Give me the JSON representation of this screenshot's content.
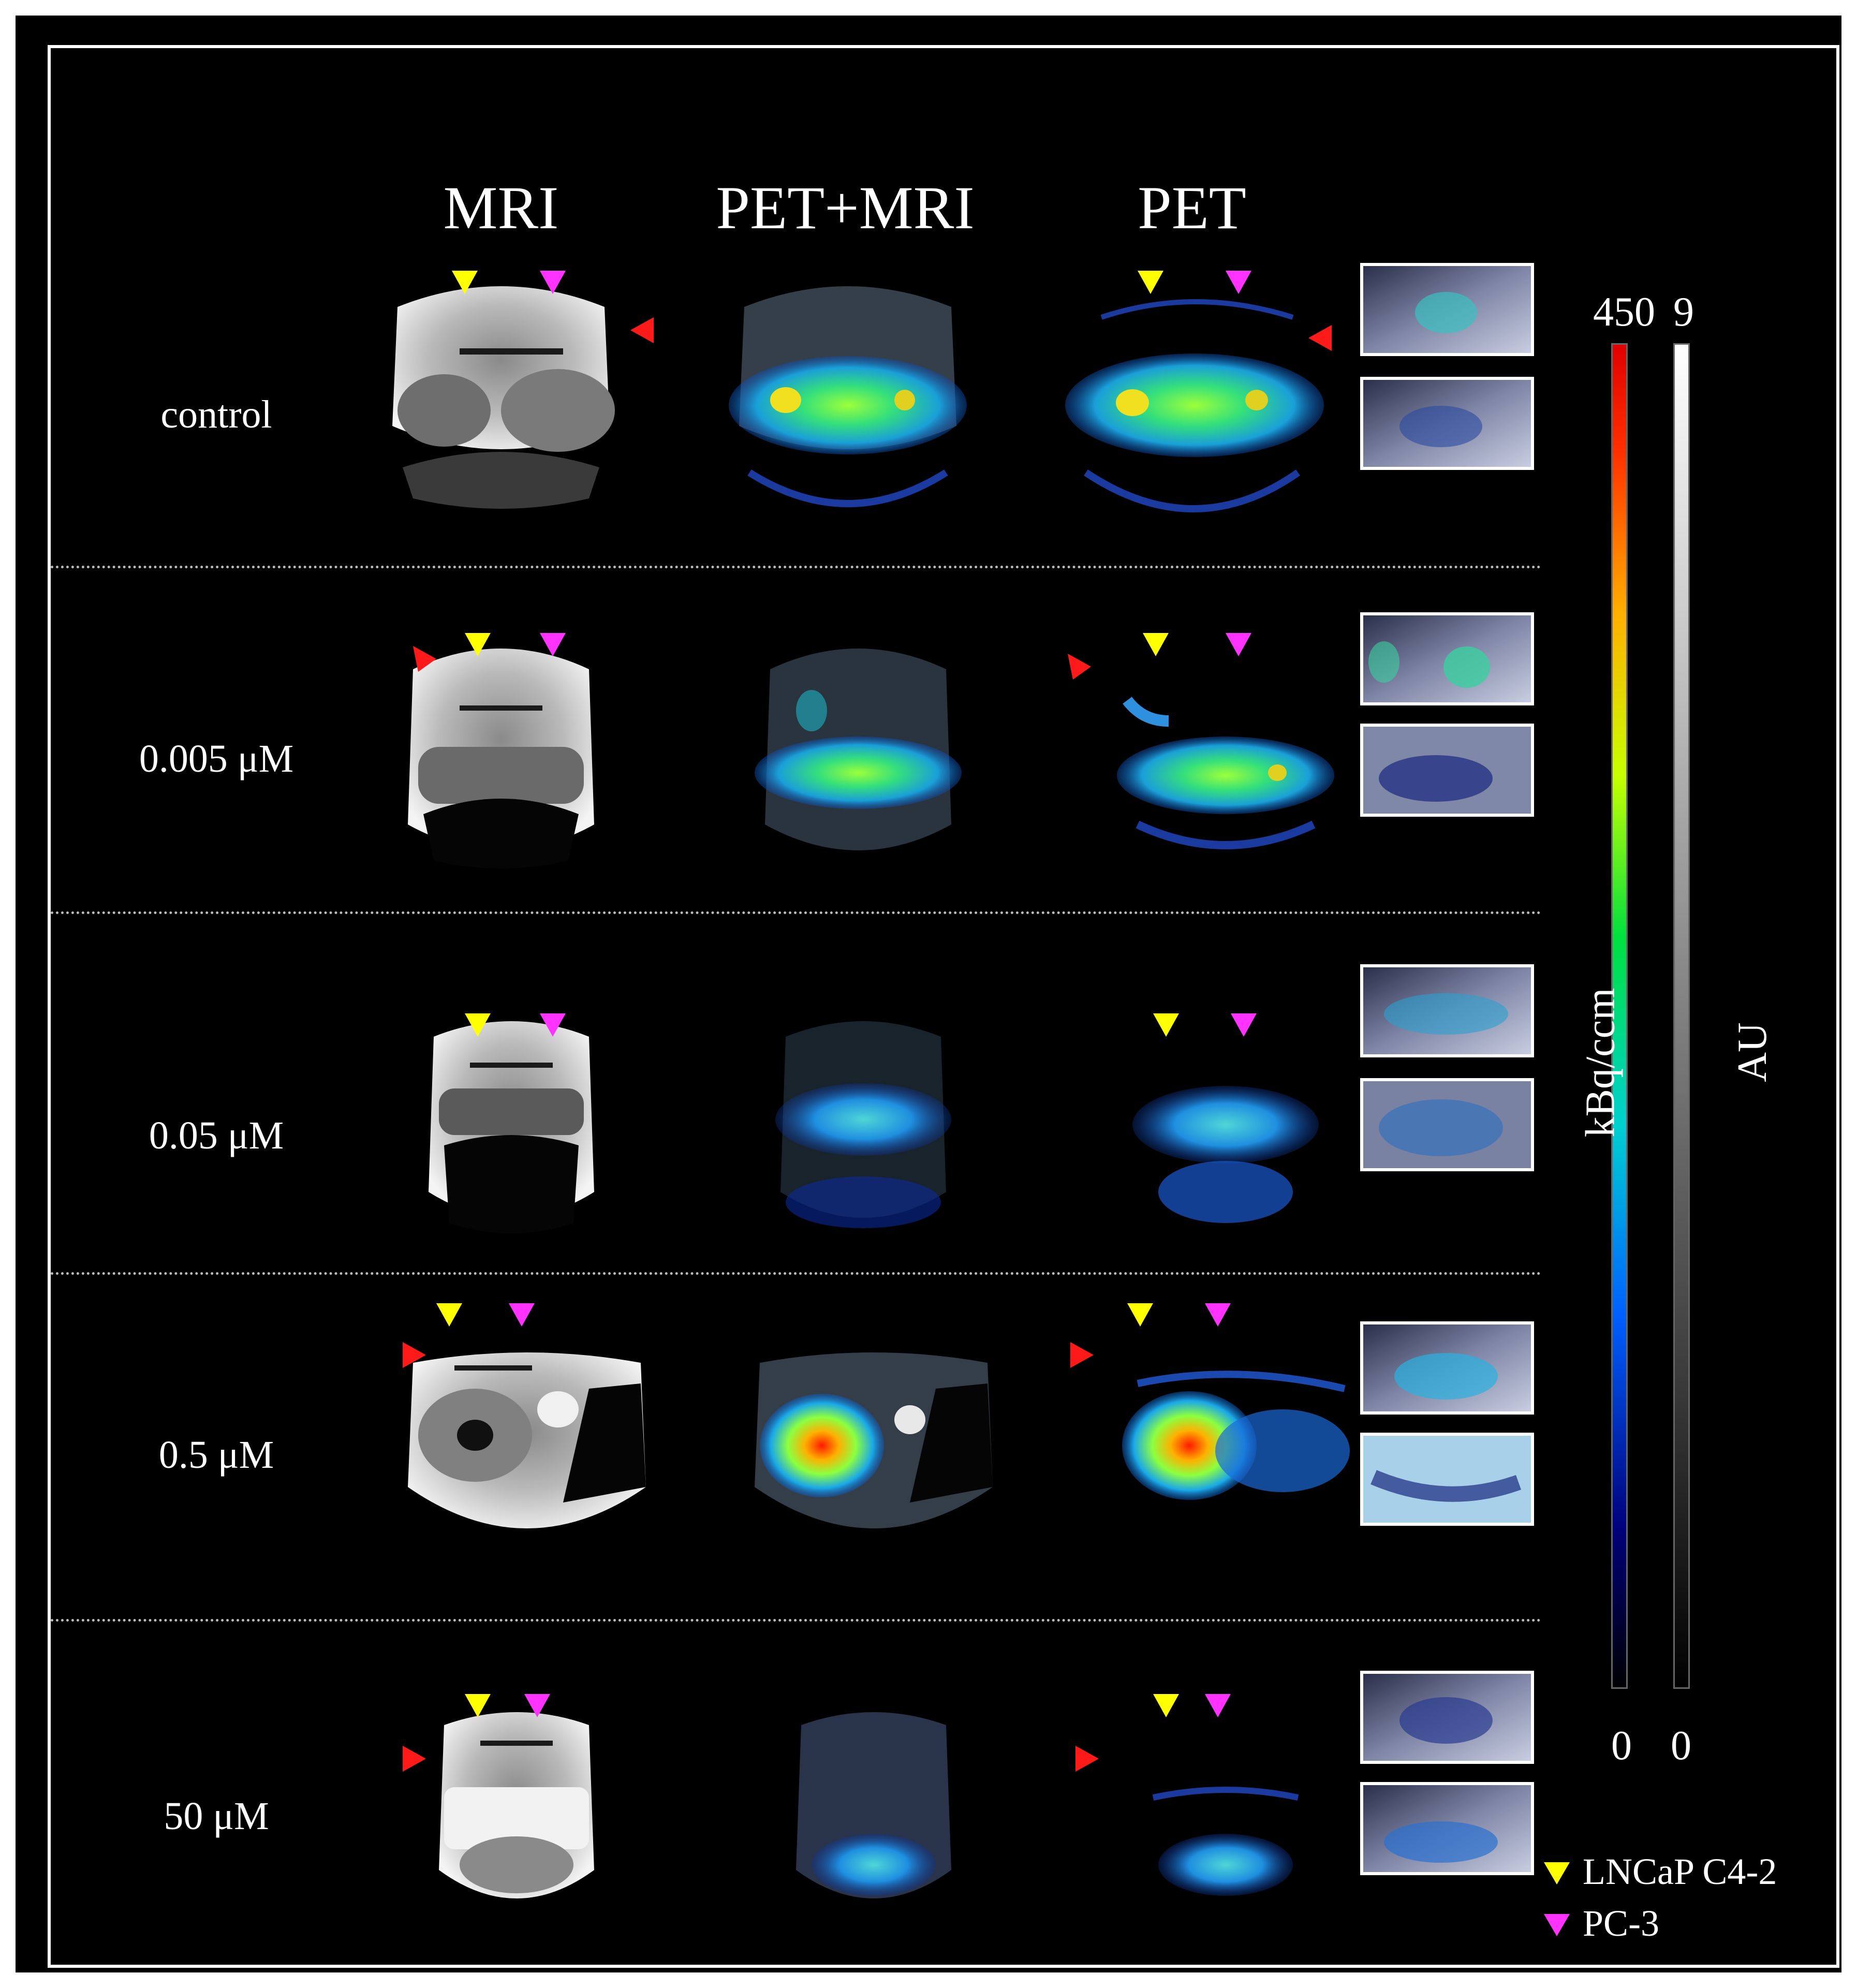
{
  "columns": [
    "MRI",
    "PET+MRI",
    "PET"
  ],
  "rows": [
    {
      "label": "control",
      "red_marker": "right"
    },
    {
      "label": "0.005 μM",
      "red_marker": "left"
    },
    {
      "label": "0.05 μM",
      "red_marker": "none"
    },
    {
      "label": "0.5 μM",
      "red_marker": "left"
    },
    {
      "label": "50 μM",
      "red_marker": "left"
    }
  ],
  "colorbar_pet": {
    "title": "kBq/ccm",
    "max": "450",
    "min": "0",
    "colormap": "jet"
  },
  "colorbar_mri": {
    "title": "AU",
    "max": "9",
    "min": "0",
    "colormap": "gray"
  },
  "legend": [
    {
      "label": "LNCaP C4-2",
      "color": "#ffff00"
    },
    {
      "label": "PC-3",
      "color": "#ff33ff"
    }
  ],
  "colors": {
    "yellow_marker": "#ffff00",
    "magenta_marker": "#ff33ff",
    "red_marker": "#ff1a1a"
  }
}
